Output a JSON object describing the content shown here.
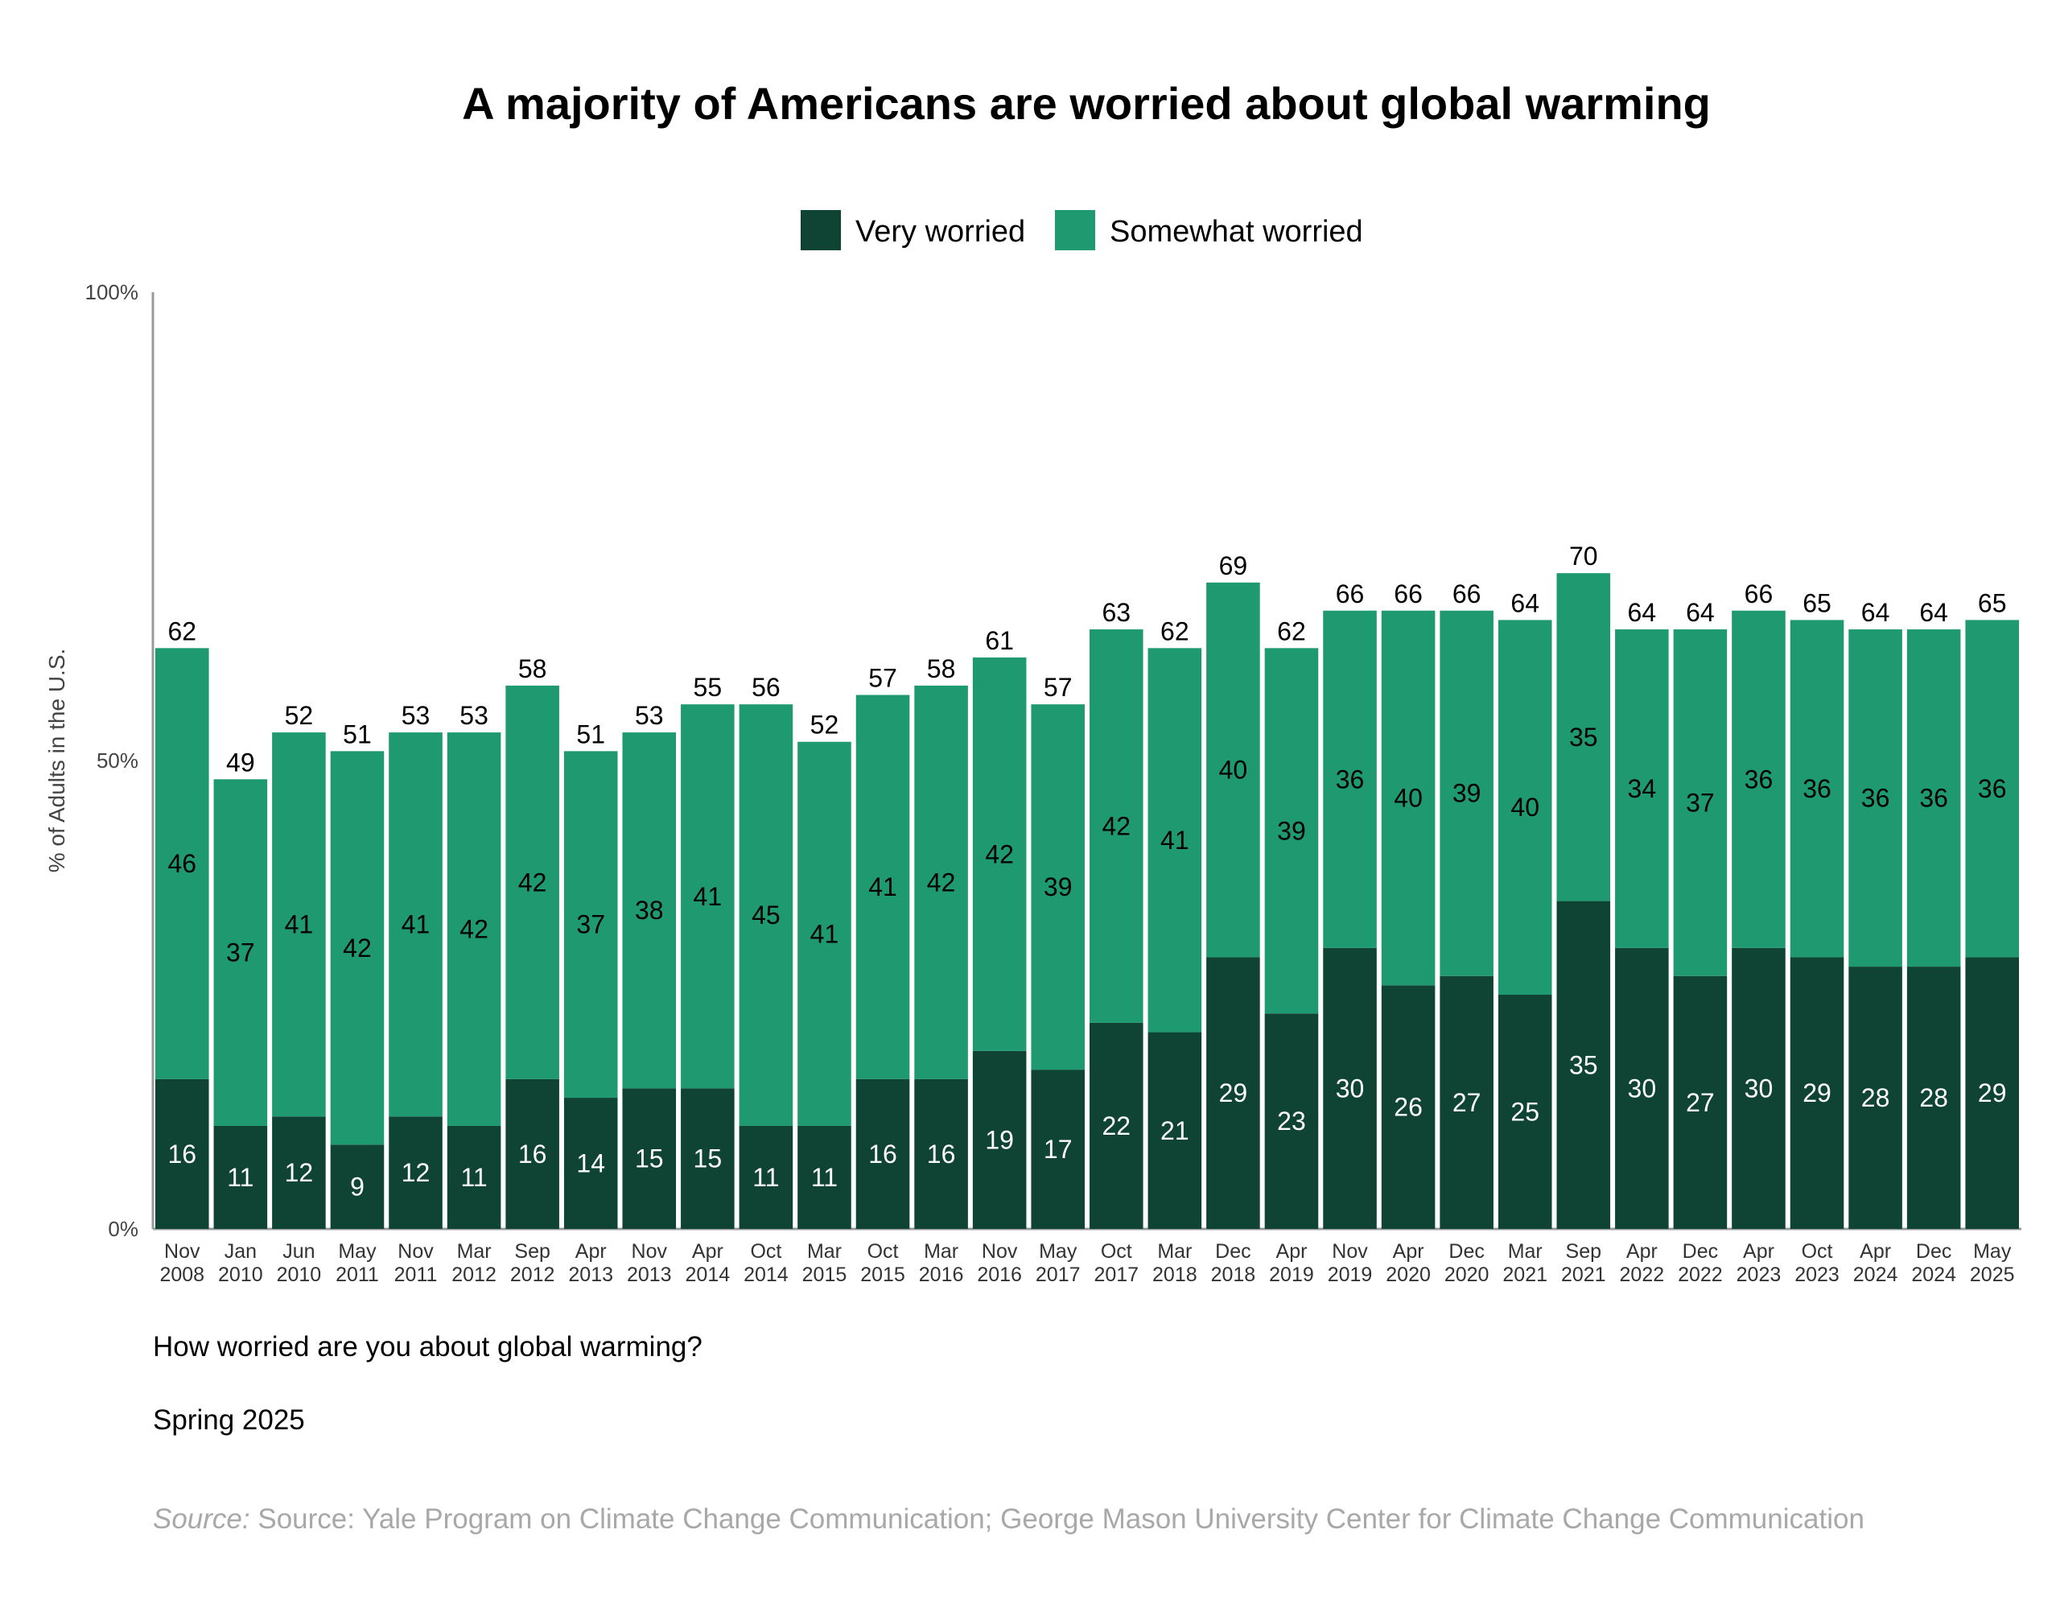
{
  "chart_data": {
    "type": "bar",
    "stacked": true,
    "title": "A majority of Americans are worried about global warming",
    "ylabel": "% of Adults in the U.S.",
    "ylim": [
      0,
      100
    ],
    "yticks": [
      "0%",
      "50%",
      "100%"
    ],
    "legend_position": "top",
    "categories": [
      [
        "Nov",
        "2008"
      ],
      [
        "Jan",
        "2010"
      ],
      [
        "Jun",
        "2010"
      ],
      [
        "May",
        "2011"
      ],
      [
        "Nov",
        "2011"
      ],
      [
        "Mar",
        "2012"
      ],
      [
        "Sep",
        "2012"
      ],
      [
        "Apr",
        "2013"
      ],
      [
        "Nov",
        "2013"
      ],
      [
        "Apr",
        "2014"
      ],
      [
        "Oct",
        "2014"
      ],
      [
        "Mar",
        "2015"
      ],
      [
        "Oct",
        "2015"
      ],
      [
        "Mar",
        "2016"
      ],
      [
        "Nov",
        "2016"
      ],
      [
        "May",
        "2017"
      ],
      [
        "Oct",
        "2017"
      ],
      [
        "Mar",
        "2018"
      ],
      [
        "Dec",
        "2018"
      ],
      [
        "Apr",
        "2019"
      ],
      [
        "Nov",
        "2019"
      ],
      [
        "Apr",
        "2020"
      ],
      [
        "Dec",
        "2020"
      ],
      [
        "Mar",
        "2021"
      ],
      [
        "Sep",
        "2021"
      ],
      [
        "Apr",
        "2022"
      ],
      [
        "Dec",
        "2022"
      ],
      [
        "Apr",
        "2023"
      ],
      [
        "Oct",
        "2023"
      ],
      [
        "Apr",
        "2024"
      ],
      [
        "Dec",
        "2024"
      ],
      [
        "May",
        "2025"
      ]
    ],
    "series": [
      {
        "name": "Very worried",
        "color": "#0f4434",
        "label_color": "#ffffff",
        "values": [
          16,
          11,
          12,
          9,
          12,
          11,
          16,
          14,
          15,
          15,
          11,
          11,
          16,
          16,
          19,
          17,
          22,
          21,
          29,
          23,
          30,
          26,
          27,
          25,
          35,
          30,
          27,
          30,
          29,
          28,
          28,
          29
        ]
      },
      {
        "name": "Somewhat worried",
        "color": "#1f9a70",
        "label_color": "#000000",
        "values": [
          46,
          37,
          41,
          42,
          41,
          42,
          42,
          37,
          38,
          41,
          45,
          41,
          41,
          42,
          42,
          39,
          42,
          41,
          40,
          39,
          36,
          40,
          39,
          40,
          35,
          34,
          37,
          36,
          36,
          36,
          36,
          36
        ]
      }
    ],
    "totals": [
      62,
      49,
      52,
      51,
      53,
      53,
      58,
      51,
      53,
      55,
      56,
      52,
      57,
      58,
      61,
      57,
      63,
      62,
      69,
      62,
      66,
      66,
      66,
      64,
      70,
      64,
      64,
      66,
      65,
      64,
      64,
      65
    ]
  },
  "footer": {
    "question": "How worried are you about global warming?",
    "season": "Spring 2025",
    "source_prefix": "Source:",
    "source_text": "Source: Yale Program on Climate Change Communication; George Mason University Center for Climate Change Communication"
  },
  "colors": {
    "axis": "#9a9a9a"
  }
}
